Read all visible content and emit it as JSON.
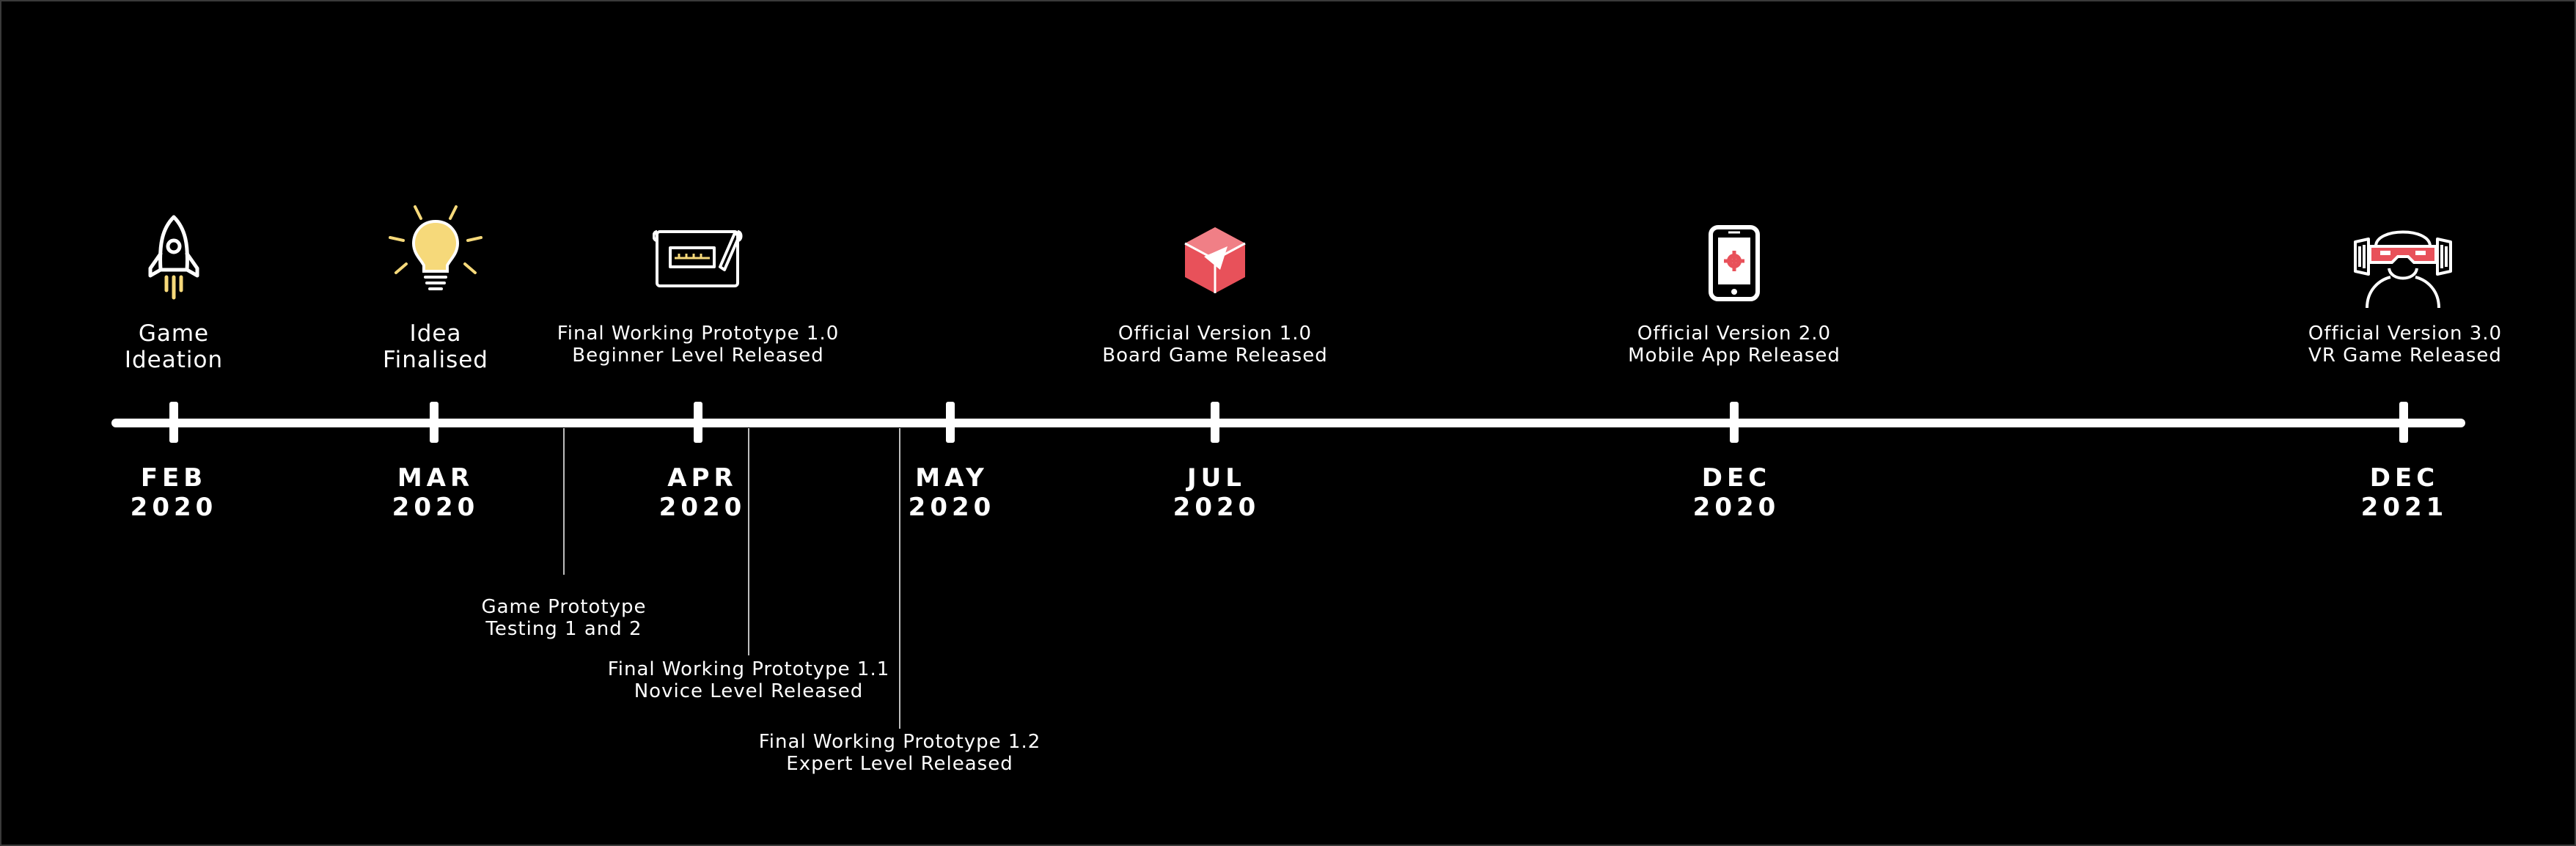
{
  "colors": {
    "background": "#000000",
    "line": "#ffffff",
    "accent_red": "#e8515a",
    "accent_yellow": "#f6d97a"
  },
  "milestones": [
    {
      "month": "FEB",
      "year": "2020",
      "icon": "rocket-icon",
      "label_lines": [
        "Game",
        "Ideation"
      ]
    },
    {
      "month": "MAR",
      "year": "2020",
      "icon": "lightbulb-icon",
      "label_lines": [
        "Idea",
        "Finalised"
      ]
    },
    {
      "month": "APR",
      "year": "2020",
      "icon": "blueprint-icon",
      "label_lines": [
        "Final Working Prototype 1.0",
        "Beginner Level Released"
      ]
    },
    {
      "month": "MAY",
      "year": "2020"
    },
    {
      "month": "JUL",
      "year": "2020",
      "icon": "board-game-box-icon",
      "label_lines": [
        "Official Version 1.0",
        "Board Game Released"
      ]
    },
    {
      "month": "DEC",
      "year": "2020",
      "icon": "mobile-app-icon",
      "label_lines": [
        "Official Version 2.0",
        "Mobile App Released"
      ]
    },
    {
      "month": "DEC",
      "year": "2021",
      "icon": "vr-headset-icon",
      "label_lines": [
        "Official Version 3.0",
        "VR Game Released"
      ]
    }
  ],
  "sub_events": [
    {
      "label_lines": [
        "Game Prototype",
        "Testing 1 and 2"
      ]
    },
    {
      "label_lines": [
        "Final Working Prototype 1.1",
        "Novice Level Released"
      ]
    },
    {
      "label_lines": [
        "Final Working Prototype 1.2",
        "Expert Level Released"
      ]
    }
  ]
}
